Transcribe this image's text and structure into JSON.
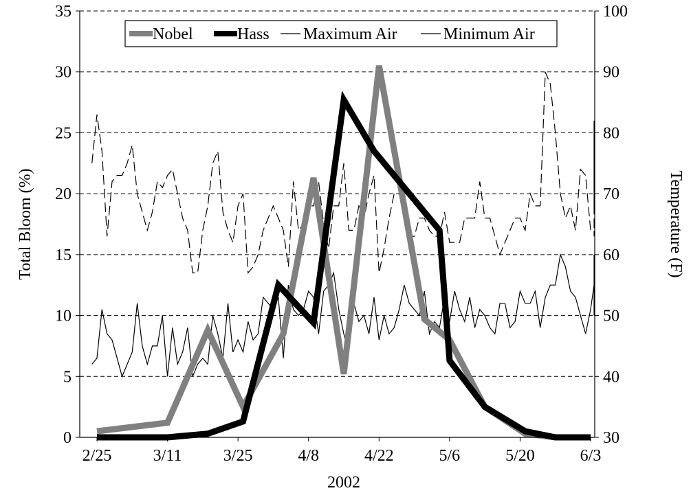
{
  "chart_data": {
    "type": "line",
    "xlabel": "2002",
    "ylabel": "Total Bloom (%)",
    "y2label": "Temperature (F)",
    "x_ticks": [
      "2/25",
      "3/11",
      "3/25",
      "4/8",
      "4/22",
      "5/6",
      "5/20",
      "6/3"
    ],
    "x_range": [
      "2002-02-25",
      "2002-06-03"
    ],
    "ylim": [
      0,
      35
    ],
    "y_ticks": [
      0,
      5,
      10,
      15,
      20,
      25,
      30,
      35
    ],
    "y2lim": [
      30,
      100
    ],
    "y2_ticks": [
      30,
      40,
      50,
      60,
      70,
      80,
      90,
      100
    ],
    "grid": "horizontal dashed",
    "legend": "top",
    "colors": {
      "Nobel": "#808080",
      "Hass": "#000000",
      "Maximum Air": "#000000",
      "Minimum Air": "#000000"
    },
    "series": [
      {
        "name": "Nobel",
        "axis": "left",
        "points": [
          [
            "2002-02-25",
            0.5
          ],
          [
            "2002-03-11",
            1.2
          ],
          [
            "2002-03-19",
            8.8
          ],
          [
            "2002-03-26",
            2.5
          ],
          [
            "2002-04-03",
            8.5
          ],
          [
            "2002-04-09",
            21.3
          ],
          [
            "2002-04-15",
            5.2
          ],
          [
            "2002-04-22",
            30.5
          ],
          [
            "2002-05-01",
            9.7
          ],
          [
            "2002-05-06",
            8.0
          ],
          [
            "2002-05-13",
            2.5
          ],
          [
            "2002-05-21",
            0.3
          ],
          [
            "2002-05-27",
            0.0
          ],
          [
            "2002-06-03",
            0.0
          ]
        ]
      },
      {
        "name": "Hass",
        "axis": "left",
        "points": [
          [
            "2002-02-25",
            0.0
          ],
          [
            "2002-03-11",
            0.0
          ],
          [
            "2002-03-19",
            0.3
          ],
          [
            "2002-03-26",
            1.3
          ],
          [
            "2002-04-02",
            12.5
          ],
          [
            "2002-04-09",
            9.4
          ],
          [
            "2002-04-15",
            27.7
          ],
          [
            "2002-04-21",
            23.5
          ],
          [
            "2002-05-04",
            17.0
          ],
          [
            "2002-05-06",
            6.3
          ],
          [
            "2002-05-13",
            2.5
          ],
          [
            "2002-05-21",
            0.5
          ],
          [
            "2002-05-27",
            0.0
          ],
          [
            "2002-06-03",
            0.0
          ]
        ]
      },
      {
        "name": "Maximum Air",
        "axis": "right",
        "dash": "long",
        "x_start": "2002-02-24",
        "x_step_days": 1,
        "values": [
          75,
          83,
          77,
          63,
          72,
          73,
          73,
          75,
          78,
          70,
          67,
          64,
          67,
          72,
          71,
          73,
          74,
          70,
          66,
          64,
          57,
          57,
          64,
          68,
          75,
          77,
          67,
          64,
          62,
          68,
          70,
          57,
          58,
          60,
          64,
          66,
          68,
          66,
          64,
          58,
          72,
          64,
          65,
          68,
          68,
          72,
          65,
          61,
          68,
          68,
          75,
          64,
          64,
          68,
          66,
          70,
          73,
          57,
          61,
          66,
          70,
          70,
          66,
          63,
          63,
          66,
          66,
          64,
          63,
          63,
          67,
          62,
          62,
          62,
          66,
          66,
          66,
          72,
          66,
          66,
          63,
          60,
          62,
          64,
          66,
          66,
          64,
          70,
          68,
          68,
          90,
          88,
          80,
          70,
          66,
          68,
          64,
          74,
          73,
          64,
          64,
          64,
          64,
          63,
          63,
          64,
          64,
          74,
          72,
          68,
          68,
          74,
          78,
          82,
          80,
          76,
          73,
          72,
          75
        ]
      },
      {
        "name": "Minimum Air",
        "axis": "right",
        "x_start": "2002-02-24",
        "x_step_days": 1,
        "values": [
          42,
          43,
          51,
          47,
          46,
          43,
          40,
          42,
          44,
          52,
          45,
          42,
          45,
          45,
          50,
          40,
          48,
          42,
          44,
          48,
          40,
          42,
          43,
          42,
          50,
          47,
          43,
          52,
          44,
          46,
          44,
          49,
          46,
          47,
          53,
          52,
          51,
          53,
          43,
          55,
          51,
          50,
          51,
          54,
          53,
          47,
          54,
          55,
          57,
          51,
          47,
          44,
          52,
          49,
          50,
          47,
          53,
          46,
          50,
          47,
          48,
          51,
          55,
          52,
          51,
          50,
          54,
          47,
          49,
          48,
          53,
          49,
          54,
          51,
          49,
          53,
          48,
          51,
          50,
          48,
          47,
          52,
          52,
          48,
          49,
          54,
          52,
          52,
          54,
          48,
          53,
          55,
          55,
          60,
          58,
          54,
          53,
          50,
          47,
          51,
          55,
          51,
          53,
          51,
          57,
          55,
          51,
          54,
          52,
          50,
          50,
          52,
          56,
          57,
          60,
          56,
          56,
          55,
          56,
          52
        ]
      }
    ]
  }
}
